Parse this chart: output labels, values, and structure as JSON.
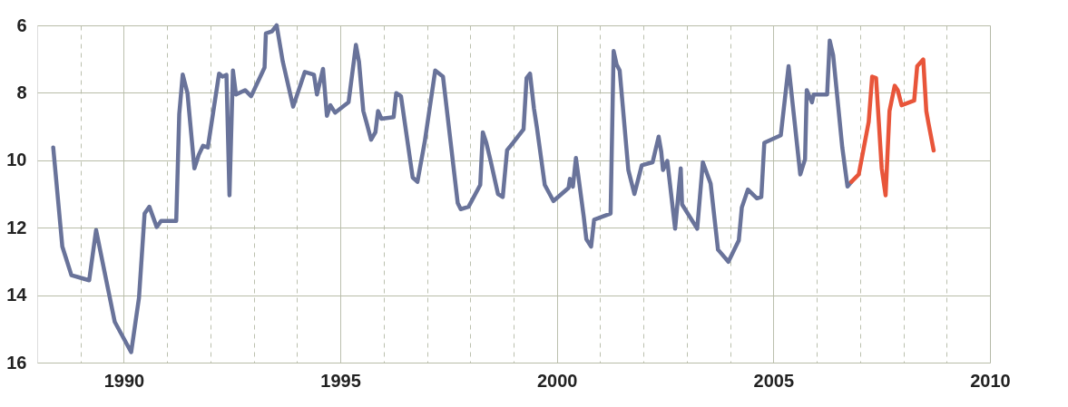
{
  "chart_data": {
    "type": "line",
    "xlim": [
      1988,
      2010
    ],
    "ylim": [
      16,
      6
    ],
    "xticks": [
      {
        "value": 1989,
        "label": null
      },
      1990,
      {
        "value": 1991,
        "label": null
      },
      {
        "value": 1992,
        "label": null
      },
      {
        "value": 1993,
        "label": null
      },
      {
        "value": 1994,
        "label": null
      },
      1995,
      {
        "value": 1996,
        "label": null
      },
      {
        "value": 1997,
        "label": null
      },
      {
        "value": 1998,
        "label": null
      },
      {
        "value": 1999,
        "label": null
      },
      2000,
      {
        "value": 2001,
        "label": null
      },
      {
        "value": 2002,
        "label": null
      },
      {
        "value": 2003,
        "label": null
      },
      {
        "value": 2004,
        "label": null
      },
      2005,
      {
        "value": 2006,
        "label": null
      },
      {
        "value": 2007,
        "label": null
      },
      {
        "value": 2008,
        "label": null
      },
      {
        "value": 2009,
        "label": null
      },
      2010
    ],
    "yticks": [
      6,
      8,
      10,
      12,
      14,
      16
    ],
    "grid": true,
    "marker": "none",
    "line_style": "solid",
    "series": [
      {
        "color": "#69739a",
        "x": [
          1988.37,
          1988.58,
          1988.79,
          1988.93,
          1989.2,
          1989.36,
          1989.55,
          1989.79,
          1990.17,
          1990.35,
          1990.48,
          1990.59,
          1990.76,
          1990.86,
          1991.21,
          1991.28,
          1991.36,
          1991.47,
          1991.63,
          1991.73,
          1991.83,
          1991.94,
          1992.2,
          1992.28,
          1992.37,
          1992.44,
          1992.52,
          1992.59,
          1992.8,
          1992.94,
          1993.25,
          1993.28,
          1993.42,
          1993.53,
          1993.67,
          1993.91,
          1994.18,
          1994.39,
          1994.46,
          1994.6,
          1994.69,
          1994.77,
          1994.88,
          1995.19,
          1995.36,
          1995.43,
          1995.53,
          1995.6,
          1995.71,
          1995.81,
          1995.87,
          1995.95,
          1996.23,
          1996.29,
          1996.4,
          1996.67,
          1996.78,
          1996.95,
          1997.19,
          1997.37,
          1997.71,
          1997.78,
          1997.96,
          1998.23,
          1998.29,
          1998.37,
          1998.47,
          1998.64,
          1998.75,
          1998.85,
          1998.99,
          1999.23,
          1999.3,
          1999.38,
          1999.47,
          1999.54,
          1999.72,
          1999.92,
          2000.27,
          2000.3,
          2000.37,
          2000.44,
          2000.62,
          2000.68,
          2000.79,
          2000.86,
          2001.24,
          2001.31,
          2001.38,
          2001.45,
          2001.65,
          2001.79,
          2001.96,
          2002.21,
          2002.35,
          2002.41,
          2002.45,
          2002.55,
          2002.73,
          2002.86,
          2002.89,
          2003.24,
          2003.37,
          2003.55,
          2003.72,
          2003.96,
          2004.2,
          2004.27,
          2004.41,
          2004.62,
          2004.72,
          2004.79,
          2005.17,
          2005.35,
          2005.62,
          2005.73,
          2005.77,
          2005.89,
          2005.93,
          2006.24,
          2006.3,
          2006.38,
          2006.59,
          2006.71,
          2006.8
        ],
        "values": [
          9.62,
          12.56,
          13.41,
          13.46,
          13.56,
          12.07,
          13.28,
          14.79,
          15.69,
          14.08,
          11.58,
          11.38,
          11.98,
          11.8,
          11.8,
          8.63,
          7.46,
          8.01,
          10.24,
          9.84,
          9.57,
          9.62,
          7.43,
          7.52,
          7.47,
          11.04,
          7.34,
          8.05,
          7.92,
          8.1,
          7.25,
          6.24,
          6.18,
          6.0,
          7.07,
          8.41,
          7.38,
          7.46,
          8.05,
          7.29,
          8.68,
          8.37,
          8.59,
          8.28,
          6.58,
          7.07,
          8.54,
          8.86,
          9.39,
          9.17,
          8.54,
          8.77,
          8.72,
          8.01,
          8.1,
          10.51,
          10.64,
          9.44,
          7.34,
          7.52,
          11.27,
          11.45,
          11.38,
          10.73,
          9.17,
          9.48,
          10.02,
          11.0,
          11.09,
          9.7,
          9.48,
          9.08,
          7.56,
          7.43,
          8.46,
          9.04,
          10.73,
          11.21,
          10.82,
          10.55,
          10.78,
          9.93,
          11.67,
          12.34,
          12.56,
          11.76,
          11.58,
          6.76,
          7.16,
          7.34,
          10.29,
          11.0,
          10.15,
          10.06,
          9.3,
          9.75,
          10.29,
          10.02,
          12.03,
          10.24,
          11.31,
          12.03,
          10.06,
          10.69,
          12.65,
          13.01,
          12.38,
          11.4,
          10.87,
          11.13,
          11.09,
          9.48,
          9.26,
          7.21,
          10.42,
          9.97,
          7.92,
          8.28,
          8.05,
          8.05,
          6.45,
          6.89,
          9.62,
          10.78,
          10.64
        ]
      },
      {
        "color": "#e8553a",
        "x": [
          2006.8,
          2006.97,
          2007.2,
          2007.28,
          2007.37,
          2007.5,
          2007.59,
          2007.68,
          2007.8,
          2007.87,
          2007.96,
          2008.25,
          2008.32,
          2008.46,
          2008.53,
          2008.58,
          2008.7
        ],
        "values": [
          10.64,
          10.42,
          8.86,
          7.52,
          7.56,
          10.24,
          11.04,
          8.54,
          7.79,
          7.92,
          8.37,
          8.23,
          7.21,
          7.01,
          8.54,
          8.9,
          9.71
        ]
      }
    ]
  }
}
